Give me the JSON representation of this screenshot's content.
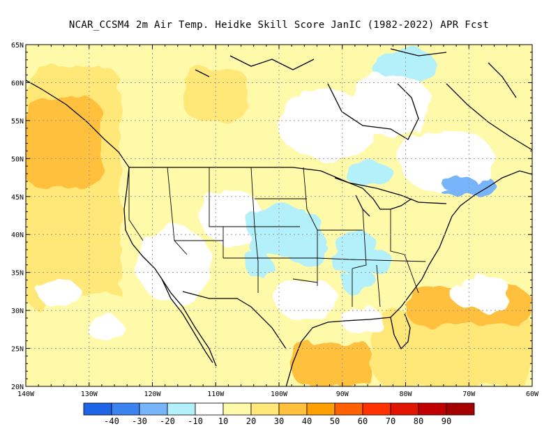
{
  "title": "NCAR_CCSM4  2m Air Temp. Heidke Skill Score JanIC (1982-2022) APR Fcst",
  "lat_labels": [
    "20N",
    "25N",
    "30N",
    "35N",
    "40N",
    "45N",
    "50N",
    "55N",
    "60N",
    "65N"
  ],
  "lat_values": [
    20,
    25,
    30,
    35,
    40,
    45,
    50,
    55,
    60,
    65
  ],
  "lon_labels": [
    "140W",
    "130W",
    "120W",
    "110W",
    "100W",
    "90W",
    "80W",
    "70W",
    "60W"
  ],
  "lon_values": [
    -140,
    -130,
    -120,
    -110,
    -100,
    -90,
    -80,
    -70,
    -60
  ],
  "colorbar": {
    "tick_labels": [
      "-40",
      "-30",
      "-20",
      "-10",
      "10",
      "20",
      "30",
      "40",
      "50",
      "60",
      "70",
      "80",
      "90"
    ],
    "colors": [
      "#1e64e6",
      "#3c82f0",
      "#78b4fa",
      "#b4f0fa",
      "#ffffff",
      "#fffaaa",
      "#ffe878",
      "#ffc03c",
      "#ffa000",
      "#ff6000",
      "#ff3200",
      "#e11400",
      "#c00000",
      "#a50000"
    ]
  },
  "chart_data": {
    "type": "heatmap",
    "title": "NCAR_CCSM4  2m Air Temp. Heidke Skill Score JanIC (1982-2022) APR Fcst",
    "xlim": [
      -140,
      -60
    ],
    "ylim": [
      20,
      65
    ],
    "projection": "cylindrical equidistant",
    "grid": "dotted",
    "regions": [
      {
        "lon": [
          -140,
          -125
        ],
        "lat": [
          30,
          62
        ],
        "level": 30
      },
      {
        "lon": [
          -140,
          -128
        ],
        "lat": [
          46,
          58
        ],
        "level": 40
      },
      {
        "lon": [
          -138,
          -118
        ],
        "lat": [
          20,
          32
        ],
        "level": 20
      },
      {
        "lon": [
          -125,
          -110
        ],
        "lat": [
          50,
          65
        ],
        "level": 20
      },
      {
        "lon": [
          -115,
          -105
        ],
        "lat": [
          55,
          62
        ],
        "level": 30
      },
      {
        "lon": [
          -85,
          -60
        ],
        "lat": [
          20,
          30
        ],
        "level": 30
      },
      {
        "lon": [
          -80,
          -60
        ],
        "lat": [
          28,
          33
        ],
        "level": 40
      },
      {
        "lon": [
          -98,
          -85
        ],
        "lat": [
          20,
          26
        ],
        "level": 40
      },
      {
        "lon": [
          -70,
          -60
        ],
        "lat": [
          36,
          42
        ],
        "level": 20
      },
      {
        "lon": [
          -105,
          -93
        ],
        "lat": [
          37,
          43
        ],
        "level": -10
      },
      {
        "lon": [
          -92,
          -82
        ],
        "lat": [
          35,
          38
        ],
        "level": -10
      },
      {
        "lon": [
          -75,
          -66
        ],
        "lat": [
          45,
          48
        ],
        "level": -20
      },
      {
        "lon": [
          -85,
          -75
        ],
        "lat": [
          60,
          64
        ],
        "level": -10
      }
    ]
  }
}
